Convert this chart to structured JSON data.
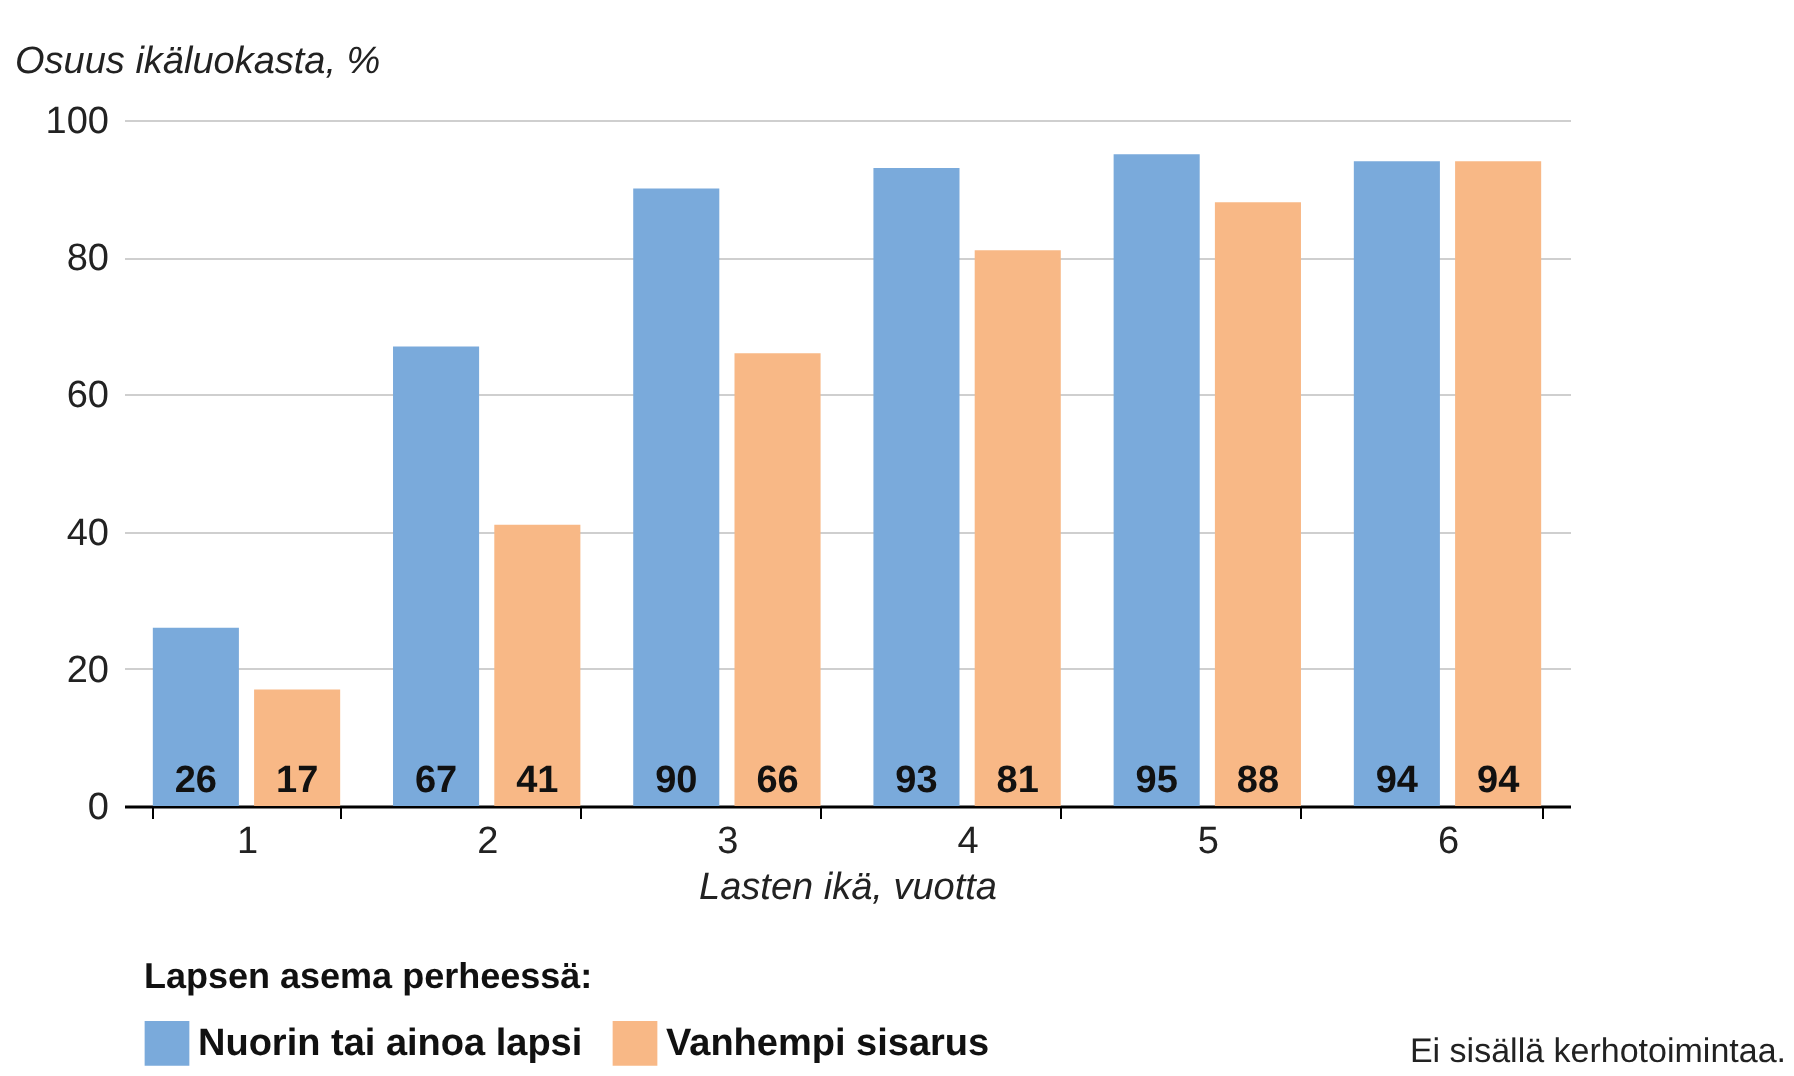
{
  "chart_data": {
    "type": "bar",
    "ylabel": "Osuus ikäluokasta, %",
    "xlabel": "Lasten ikä, vuotta",
    "legend_title": "Lapsen asema perheessä:",
    "categories": [
      "1",
      "2",
      "3",
      "4",
      "5",
      "6"
    ],
    "series": [
      {
        "name": "Nuorin tai ainoa lapsi",
        "color": "#7aaadb",
        "values": [
          26,
          67,
          90,
          93,
          95,
          94
        ]
      },
      {
        "name": "Vanhempi sisarus",
        "color": "#f8b886",
        "values": [
          17,
          41,
          66,
          81,
          88,
          94
        ]
      }
    ],
    "ylim": [
      0,
      100
    ],
    "yticks": [
      0,
      20,
      40,
      60,
      80,
      100
    ],
    "grid": "y",
    "legend": "bottom",
    "data_labels": true,
    "annotations": [
      "Ei sisällä kerhotoimintaa."
    ]
  }
}
